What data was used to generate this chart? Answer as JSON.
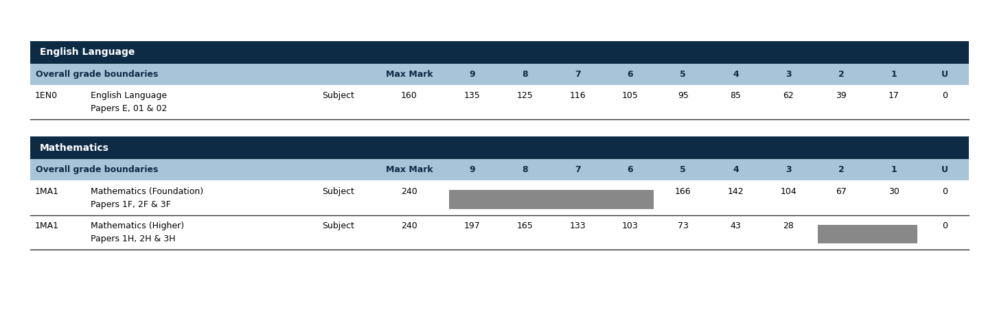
{
  "title_bg_color": "#0d2b45",
  "header_bg_color": "#a8c4d8",
  "gray_cell_color": "#888888",
  "title_text_color": "#ffffff",
  "header_text_color": "#0d2b45",
  "row_text_color": "#000000",
  "section1": {
    "title": "English Language",
    "rows": [
      {
        "code": "1EN0",
        "name": "English Language",
        "subname": "Papers E, 01 & 02",
        "type": "Subject",
        "max_mark": "160",
        "grades": [
          "135",
          "125",
          "116",
          "105",
          "95",
          "85",
          "62",
          "39",
          "17",
          "0"
        ],
        "gray_cols": []
      }
    ]
  },
  "section2": {
    "title": "Mathematics",
    "rows": [
      {
        "code": "1MA1",
        "name": "Mathematics (Foundation)",
        "subname": "Papers 1F, 2F & 3F",
        "type": "Subject",
        "max_mark": "240",
        "grades": [
          "",
          "",
          "",
          "",
          "166",
          "142",
          "104",
          "67",
          "30",
          "0"
        ],
        "gray_cols": [
          0,
          1,
          2,
          3
        ]
      },
      {
        "code": "1MA1",
        "name": "Mathematics (Higher)",
        "subname": "Papers 1H, 2H & 3H",
        "type": "Subject",
        "max_mark": "240",
        "grades": [
          "197",
          "165",
          "133",
          "103",
          "73",
          "43",
          "28",
          "",
          "",
          "0"
        ],
        "gray_cols": [
          7,
          8
        ]
      }
    ]
  },
  "figsize": [
    14.52,
    4.58
  ],
  "dpi": 100
}
